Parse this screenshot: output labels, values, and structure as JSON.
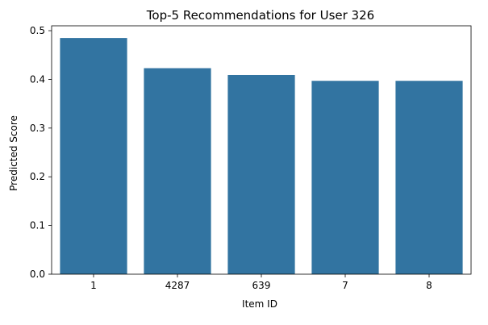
{
  "chart_data": {
    "type": "bar",
    "title": "Top-5 Recommendations for User 326",
    "xlabel": "Item ID",
    "ylabel": "Predicted Score",
    "categories": [
      "1",
      "4287",
      "639",
      "7",
      "8"
    ],
    "values": [
      0.485,
      0.423,
      0.409,
      0.397,
      0.397
    ],
    "ylim": [
      0,
      0.51
    ],
    "yticks": [
      0.0,
      0.1,
      0.2,
      0.3,
      0.4,
      0.5
    ],
    "ytick_labels": [
      "0.0",
      "0.1",
      "0.2",
      "0.3",
      "0.4",
      "0.5"
    ],
    "bar_color": "#3274a1",
    "grid": false,
    "legend": "none"
  }
}
